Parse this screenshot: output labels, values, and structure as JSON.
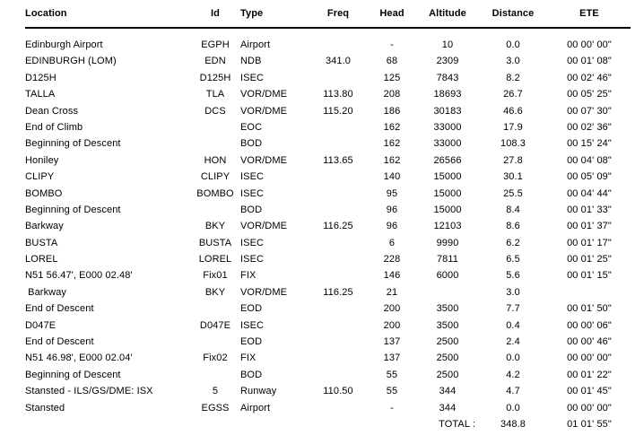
{
  "report": {
    "columns": [
      "Location",
      "Id",
      "Type",
      "Freq",
      "Head",
      "Altitude",
      "Distance",
      "ETE"
    ],
    "rows": [
      [
        "Edinburgh Airport",
        "EGPH",
        "Airport",
        "",
        "-",
        "10",
        "0.0",
        "00 00' 00\""
      ],
      [
        "EDINBURGH (LOM)",
        "EDN",
        "NDB",
        "341.0",
        "68",
        "2309",
        "3.0",
        "00 01' 08\""
      ],
      [
        "D125H",
        "D125H",
        "ISEC",
        "",
        "125",
        "7843",
        "8.2",
        "00 02' 46\""
      ],
      [
        "TALLA",
        "TLA",
        "VOR/DME",
        "113.80",
        "208",
        "18693",
        "26.7",
        "00 05' 25\""
      ],
      [
        "Dean Cross",
        "DCS",
        "VOR/DME",
        "115.20",
        "186",
        "30183",
        "46.6",
        "00 07' 30\""
      ],
      [
        "End of Climb",
        "",
        "EOC",
        "",
        "162",
        "33000",
        "17.9",
        "00 02' 36\""
      ],
      [
        "Beginning of Descent",
        "",
        "BOD",
        "",
        "162",
        "33000",
        "108.3",
        "00 15' 24\""
      ],
      [
        "Honiley",
        "HON",
        "VOR/DME",
        "113.65",
        "162",
        "26566",
        "27.8",
        "00 04' 08\""
      ],
      [
        "CLIPY",
        "CLIPY",
        "ISEC",
        "",
        "140",
        "15000",
        "30.1",
        "00 05' 09\""
      ],
      [
        "BOMBO",
        "BOMBO",
        "ISEC",
        "",
        "95",
        "15000",
        "25.5",
        "00 04' 44\""
      ],
      [
        "Beginning of Descent",
        "",
        "BOD",
        "",
        "96",
        "15000",
        "8.4",
        "00 01' 33\""
      ],
      [
        "Barkway",
        "BKY",
        "VOR/DME",
        "116.25",
        "96",
        "12103",
        "8.6",
        "00 01' 37\""
      ],
      [
        "BUSTA",
        "BUSTA",
        "ISEC",
        "",
        "6",
        "9990",
        "6.2",
        "00 01' 17\""
      ],
      [
        "LOREL",
        "LOREL",
        "ISEC",
        "",
        "228",
        "7811",
        "6.5",
        "00 01' 25\""
      ],
      [
        "N51 56.47', E000 02.48'",
        "Fix01",
        "FIX",
        "",
        "146",
        "6000",
        "5.6",
        "00 01' 15\""
      ],
      [
        " Barkway",
        "BKY",
        "VOR/DME",
        "116.25",
        "21",
        "",
        "3.0",
        ""
      ],
      [
        "End of Descent",
        "",
        "EOD",
        "",
        "200",
        "3500",
        "7.7",
        "00 01' 50\""
      ],
      [
        "D047E",
        "D047E",
        "ISEC",
        "",
        "200",
        "3500",
        "0.4",
        "00 00' 06\""
      ],
      [
        "End of Descent",
        "",
        "EOD",
        "",
        "137",
        "2500",
        "2.4",
        "00 00' 46\""
      ],
      [
        "N51 46.98', E000 02.04'",
        "Fix02",
        "FIX",
        "",
        "137",
        "2500",
        "0.0",
        "00 00' 00\""
      ],
      [
        "Beginning of Descent",
        "",
        "BOD",
        "",
        "55",
        "2500",
        "4.2",
        "00 01' 22\""
      ],
      [
        "Stansted - ILS/GS/DME: ISX",
        "5",
        "Runway",
        "110.50",
        "55",
        "344",
        "4.7",
        "00 01' 45\""
      ],
      [
        "Stansted",
        "EGSS",
        "Airport",
        "",
        "-",
        "344",
        "0.0",
        "00 00' 00\""
      ]
    ],
    "total": {
      "label": "TOTAL :",
      "distance": "348.8",
      "ete": "01 01' 55\""
    }
  }
}
